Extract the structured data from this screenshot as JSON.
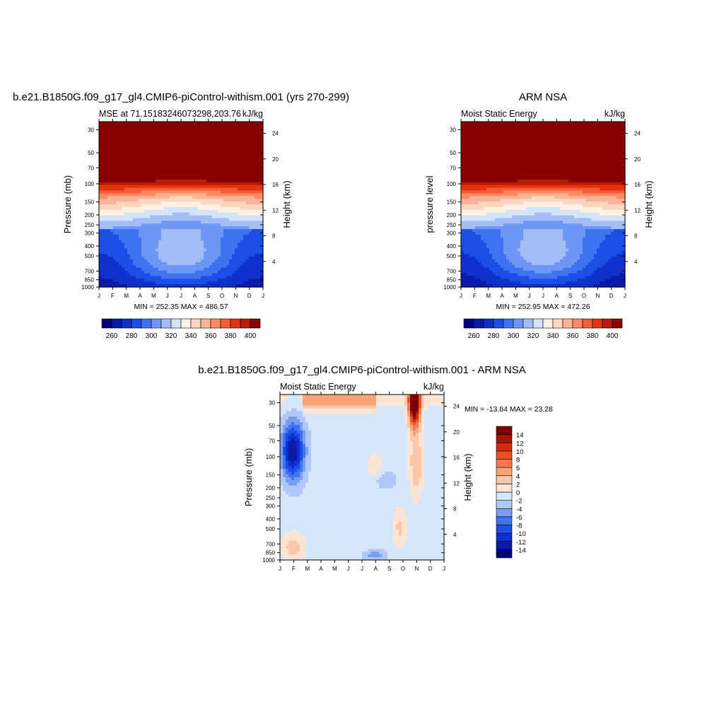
{
  "palettes": {
    "mse": [
      "#00007f",
      "#0a1aa8",
      "#1030cc",
      "#1a4ee6",
      "#3f73f2",
      "#6e97f5",
      "#a3bdf7",
      "#d2e3fb",
      "#fff2e3",
      "#fdd6bf",
      "#fbb398",
      "#f98a64",
      "#f45d33",
      "#e23412",
      "#b91c06",
      "#8a0000"
    ],
    "diff": [
      "#00007f",
      "#0a1aa8",
      "#1030cc",
      "#1a4ee6",
      "#3f73f2",
      "#7a9cf3",
      "#b0c8f7",
      "#d6e6fb",
      "#fde5d5",
      "#fbc7aa",
      "#f8a479",
      "#f37b4b",
      "#e8501f",
      "#cf2d0c",
      "#a71304",
      "#800000"
    ]
  },
  "panels": [
    {
      "id": "model",
      "title": "b.e21.B1850G.f09_g17_gl4.CMIP6-piControl-withism.001 (yrs 270-299)",
      "left_label": "MSE at 71.15183246073298,203.76",
      "right_label": "kJ/kg",
      "ylabel": "Pressure (mb)",
      "ylabel2": "Height (km)",
      "minmax": "MIN = 252.35 MAX = 486.57",
      "field": "mse"
    },
    {
      "id": "obs",
      "title": "ARM NSA",
      "left_label": "Moist Static Energy",
      "right_label": "kJ/kg",
      "ylabel": "pressure level",
      "ylabel2": "Height (km)",
      "minmax": "MIN = 252.95 MAX = 472.26",
      "field": "mse"
    },
    {
      "id": "diff",
      "title": "b.e21.B1850G.f09_g17_gl4.CMIP6-piControl-withism.001 - ARM NSA",
      "left_label": "Moist Static Energy",
      "right_label": "kJ/kg",
      "ylabel": "Pressure (mb)",
      "ylabel2": "Height (km)",
      "minmax": "MIN = -13.84 MAX =  23.28",
      "field": "diff"
    }
  ],
  "chart_data": [
    {
      "type": "heatmap",
      "title": "b.e21.B1850G.f09_g17_gl4.CMIP6-piControl-withism.001 (yrs 270-299)",
      "subtitle_left": "MSE at 71.15183246073298,203.76",
      "subtitle_right": "kJ/kg",
      "xlabel": "",
      "ylabel": "Pressure (mb)",
      "ylabel_right": "Height (km)",
      "x_ticks": [
        "J",
        "F",
        "M",
        "A",
        "M",
        "J",
        "J",
        "A",
        "S",
        "O",
        "N",
        "D",
        "J"
      ],
      "y_ticks": [
        30,
        50,
        70,
        100,
        150,
        200,
        250,
        300,
        400,
        500,
        700,
        850,
        1000
      ],
      "y_scale": "log",
      "ylim": [
        1000,
        25
      ],
      "height_ticks": [
        4,
        8,
        12,
        16,
        20,
        24
      ],
      "colorbar": {
        "levels": [
          260,
          270,
          280,
          290,
          300,
          310,
          320,
          330,
          340,
          350,
          360,
          370,
          380,
          390,
          400
        ],
        "labels": [
          "260",
          "280",
          "300",
          "320",
          "340",
          "360",
          "380",
          "400"
        ],
        "orientation": "horizontal"
      },
      "min": 252.35,
      "max": 486.57
    },
    {
      "type": "heatmap",
      "title": "ARM NSA",
      "subtitle_left": "Moist Static Energy",
      "subtitle_right": "kJ/kg",
      "xlabel": "",
      "ylabel": "pressure level",
      "ylabel_right": "Height (km)",
      "x_ticks": [
        "J",
        "F",
        "M",
        "A",
        "M",
        "J",
        "J",
        "A",
        "S",
        "O",
        "N",
        "D",
        "J"
      ],
      "y_ticks": [
        30,
        50,
        70,
        100,
        150,
        200,
        250,
        300,
        400,
        500,
        700,
        850,
        1000
      ],
      "y_scale": "log",
      "ylim": [
        1000,
        25
      ],
      "height_ticks": [
        4,
        8,
        12,
        16,
        20,
        24
      ],
      "colorbar": {
        "levels": [
          260,
          270,
          280,
          290,
          300,
          310,
          320,
          330,
          340,
          350,
          360,
          370,
          380,
          390,
          400
        ],
        "labels": [
          "260",
          "280",
          "300",
          "320",
          "340",
          "360",
          "380",
          "400"
        ],
        "orientation": "horizontal"
      },
      "min": 252.95,
      "max": 472.26
    },
    {
      "type": "heatmap",
      "title": "b.e21.B1850G.f09_g17_gl4.CMIP6-piControl-withism.001 - ARM NSA",
      "subtitle_left": "Moist Static Energy",
      "subtitle_right": "kJ/kg",
      "xlabel": "",
      "ylabel": "Pressure (mb)",
      "ylabel_right": "Height (km)",
      "x_ticks": [
        "J",
        "F",
        "M",
        "A",
        "M",
        "J",
        "J",
        "A",
        "S",
        "O",
        "N",
        "D",
        "J"
      ],
      "y_ticks": [
        30,
        50,
        70,
        100,
        150,
        200,
        250,
        300,
        400,
        500,
        700,
        850,
        1000
      ],
      "y_scale": "log",
      "ylim": [
        1000,
        25
      ],
      "height_ticks": [
        4,
        8,
        12,
        16,
        20,
        24
      ],
      "colorbar": {
        "levels": [
          -14,
          -12,
          -10,
          -8,
          -6,
          -4,
          -2,
          0,
          2,
          4,
          6,
          8,
          10,
          12,
          14
        ],
        "labels": [
          "-14",
          "-12",
          "-10",
          "-8",
          "-6",
          "-4",
          "-2",
          "0",
          "2",
          "4",
          "6",
          "8",
          "10",
          "12",
          "14"
        ],
        "orientation": "vertical"
      },
      "min": -13.84,
      "max": 23.28
    }
  ]
}
